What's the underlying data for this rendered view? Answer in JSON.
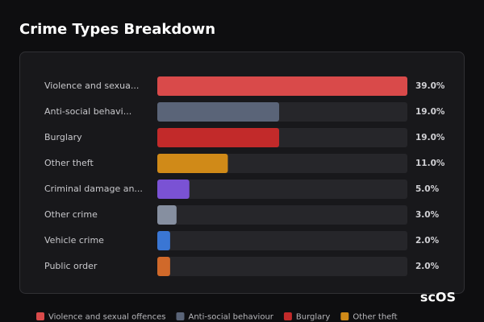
{
  "chart_data": {
    "type": "bar",
    "orientation": "horizontal",
    "title": "Crime Types Breakdown",
    "categories": [
      "Violence and sexua...",
      "Anti-social behavi...",
      "Burglary",
      "Other theft",
      "Criminal damage an...",
      "Other crime",
      "Vehicle crime",
      "Public order"
    ],
    "values": [
      39,
      19,
      19,
      11,
      5,
      3,
      2,
      2
    ],
    "value_labels": [
      "39.0%",
      "19.0%",
      "19.0%",
      "11.0%",
      "5.0%",
      "3.0%",
      "2.0%",
      "2.0%"
    ],
    "colors": [
      "#d94a4a",
      "#5a6478",
      "#c22a2a",
      "#d08a18",
      "#7a52d4",
      "#868fa0",
      "#3a76d4",
      "#d0692a"
    ],
    "xlim": [
      0,
      39
    ],
    "legend": {
      "position": "bottom",
      "labels": [
        "Violence and sexual offences",
        "Anti-social behaviour",
        "Burglary",
        "Other theft"
      ],
      "colors": [
        "#d94a4a",
        "#5a6478",
        "#c22a2a",
        "#d08a18"
      ]
    },
    "watermark": "scOS"
  }
}
